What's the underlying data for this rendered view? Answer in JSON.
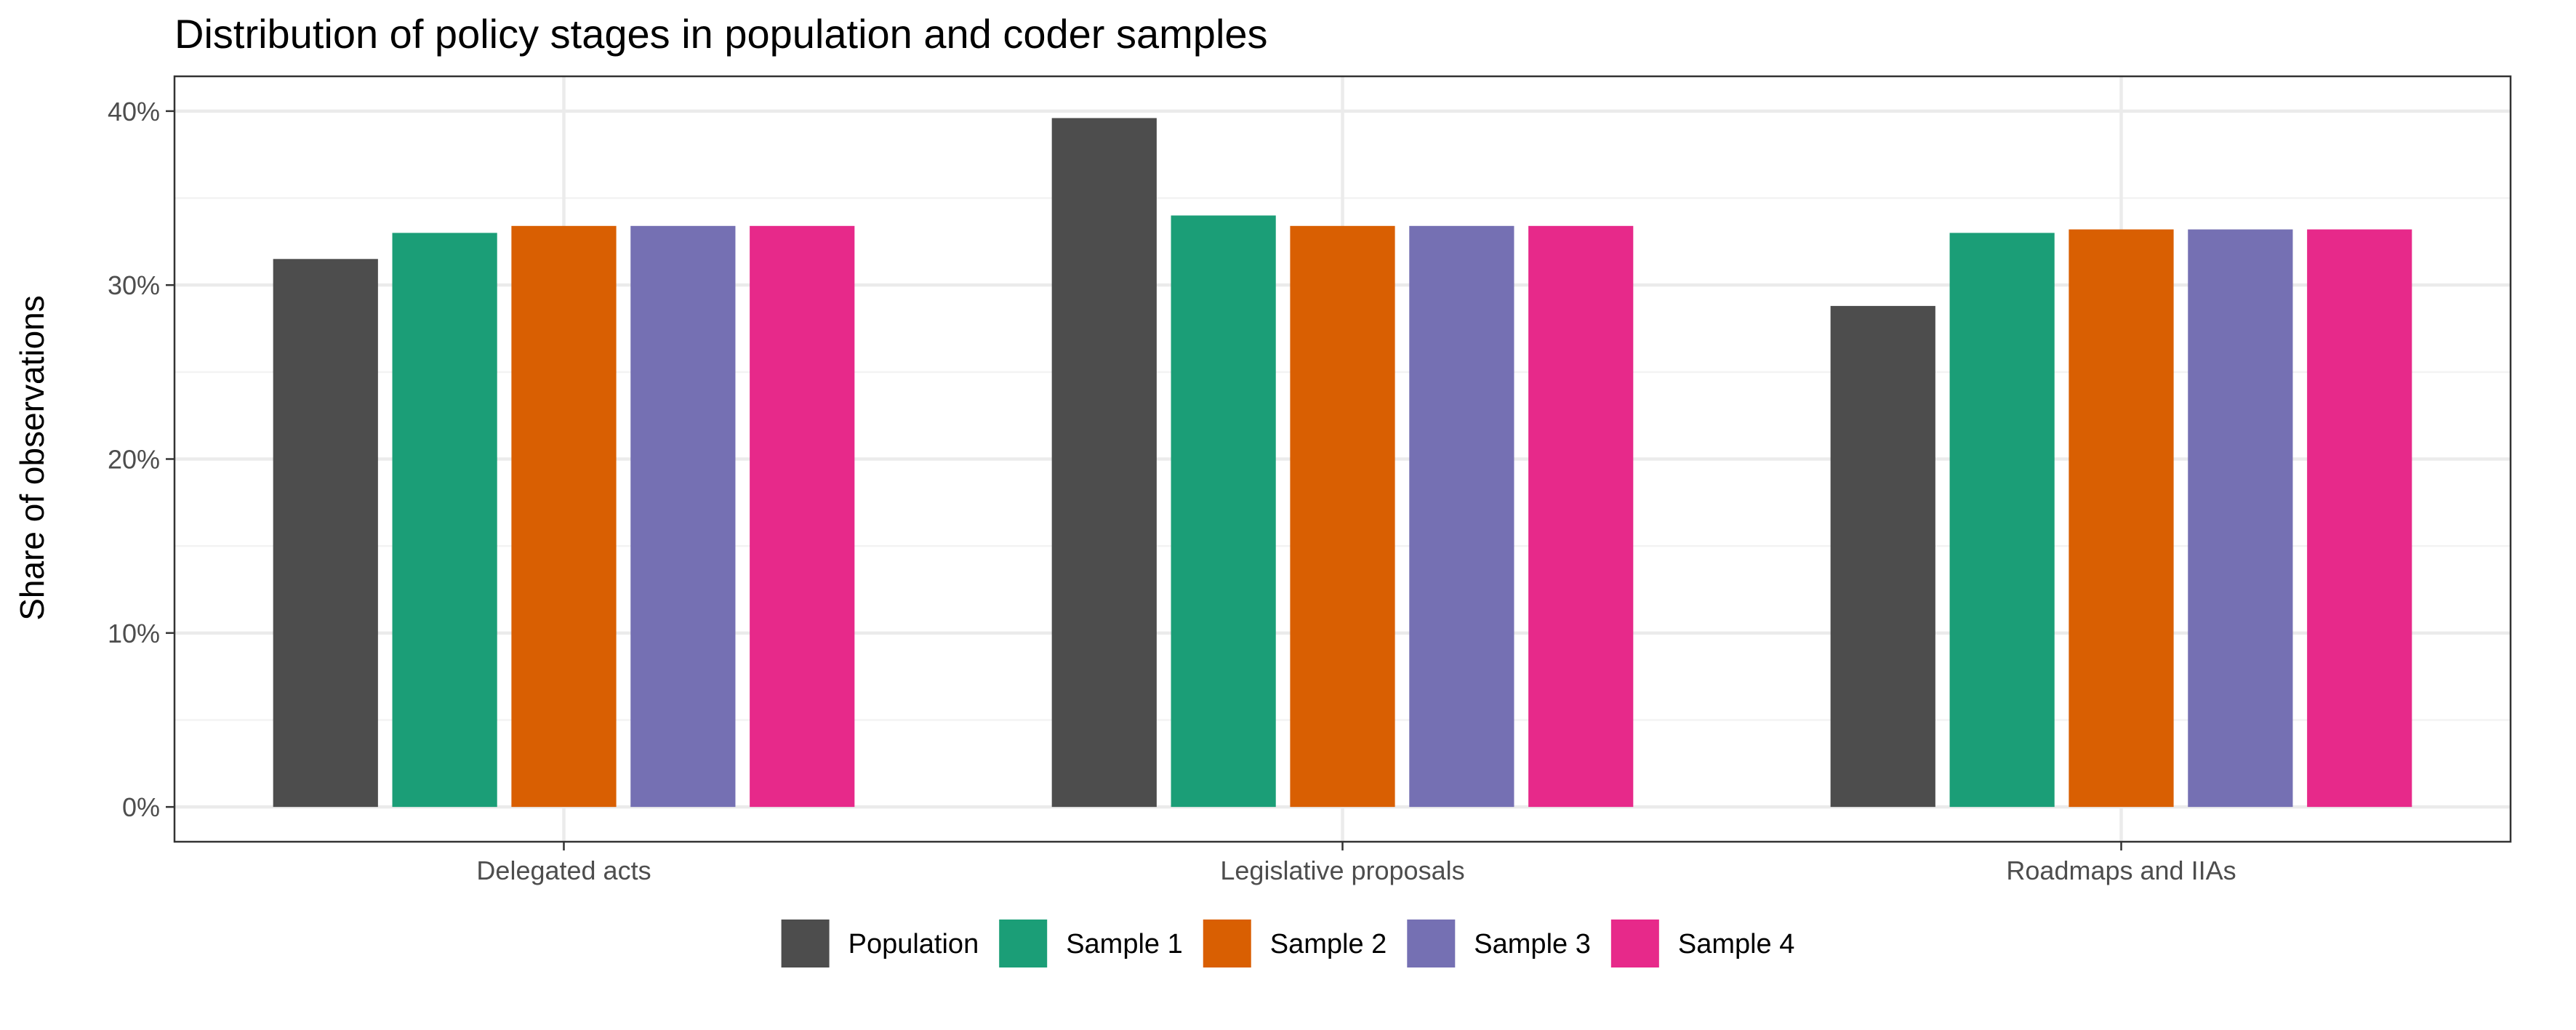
{
  "chart_data": {
    "type": "bar",
    "title": "Distribution of policy stages in population and coder samples",
    "xlabel": "",
    "ylabel": "Share of observations",
    "categories": [
      "Delegated acts",
      "Legislative proposals",
      "Roadmaps and IIAs"
    ],
    "series": [
      {
        "name": "Population",
        "color": "#4d4d4d",
        "values": [
          31.5,
          39.6,
          28.8
        ]
      },
      {
        "name": "Sample 1",
        "color": "#1b9e77",
        "values": [
          33.0,
          34.0,
          33.0
        ]
      },
      {
        "name": "Sample 2",
        "color": "#d95f02",
        "values": [
          33.4,
          33.4,
          33.2
        ]
      },
      {
        "name": "Sample 3",
        "color": "#7570b3",
        "values": [
          33.4,
          33.4,
          33.2
        ]
      },
      {
        "name": "Sample 4",
        "color": "#e7298a",
        "values": [
          33.4,
          33.4,
          33.2
        ]
      }
    ],
    "ylim": [
      -2,
      42
    ],
    "yticks": [
      0,
      10,
      20,
      30,
      40
    ],
    "ytick_labels": [
      "0%",
      "10%",
      "20%",
      "30%",
      "40%"
    ],
    "grid": true,
    "legend_position": "bottom"
  }
}
